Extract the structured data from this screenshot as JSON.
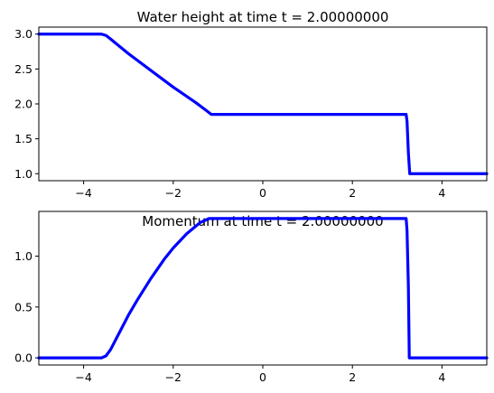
{
  "chart_data": [
    {
      "type": "line",
      "title": "Water height at time t =     2.00000000",
      "xlabel": "",
      "ylabel": "",
      "xlim": [
        -5,
        5
      ],
      "ylim": [
        0.9,
        3.1
      ],
      "xticks": [
        -4,
        -2,
        0,
        2,
        4
      ],
      "yticks": [
        1.0,
        1.5,
        2.0,
        2.5,
        3.0
      ],
      "ytick_labels": [
        "1.0",
        "1.5",
        "2.0",
        "2.5",
        "3.0"
      ],
      "grid": false,
      "color": "#0000ff",
      "x": [
        -5.0,
        -3.6,
        -3.5,
        -3.4,
        -3.0,
        -2.5,
        -2.0,
        -1.5,
        -1.25,
        -1.15,
        3.0,
        3.2,
        3.22,
        3.25,
        3.28,
        3.3,
        5.0
      ],
      "y": [
        3.0,
        3.0,
        2.98,
        2.93,
        2.72,
        2.48,
        2.24,
        2.02,
        1.9,
        1.85,
        1.85,
        1.85,
        1.75,
        1.3,
        1.0,
        1.0,
        1.0
      ]
    },
    {
      "type": "line",
      "title": "Momentum at time t =     2.00000000",
      "xlabel": "",
      "ylabel": "",
      "xlim": [
        -5,
        5
      ],
      "ylim": [
        -0.07,
        1.44
      ],
      "xticks": [
        -4,
        -2,
        0,
        2,
        4
      ],
      "yticks": [
        0.0,
        0.5,
        1.0
      ],
      "ytick_labels": [
        "0.0",
        "0.5",
        "1.0"
      ],
      "grid": false,
      "color": "#0000ff",
      "x": [
        -5.0,
        -3.6,
        -3.5,
        -3.4,
        -3.2,
        -3.0,
        -2.8,
        -2.5,
        -2.2,
        -2.0,
        -1.7,
        -1.4,
        -1.2,
        -1.1,
        3.0,
        3.2,
        3.22,
        3.25,
        3.27,
        3.3,
        5.0
      ],
      "y": [
        0.0,
        0.0,
        0.02,
        0.08,
        0.25,
        0.42,
        0.57,
        0.78,
        0.97,
        1.08,
        1.22,
        1.33,
        1.37,
        1.37,
        1.37,
        1.37,
        1.25,
        0.7,
        0.0,
        0.0,
        0.0
      ]
    }
  ]
}
